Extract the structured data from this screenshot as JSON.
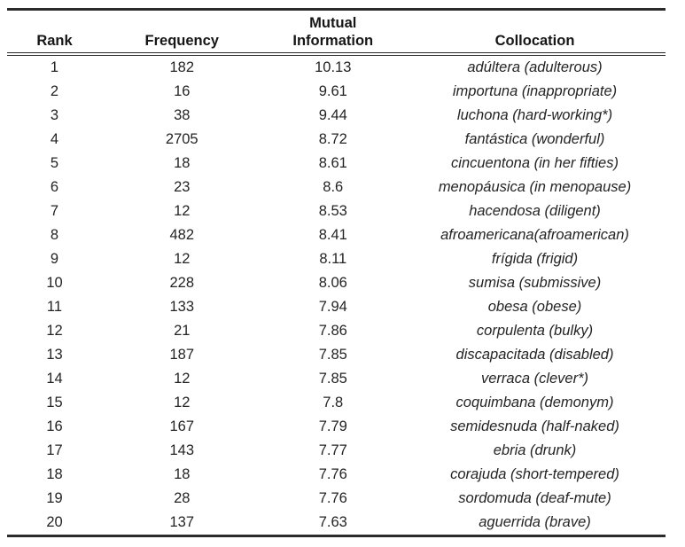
{
  "colors": {
    "background": "#ffffff",
    "text": "#242424",
    "rule": "#2b2b2b"
  },
  "table": {
    "headers": [
      "Rank",
      "Frequency",
      "Mutual Information",
      "Collocation"
    ],
    "rows": [
      [
        "1",
        "182",
        "10.13",
        "adúltera (adulterous)"
      ],
      [
        "2",
        "16",
        "9.61",
        "importuna (inappropriate)"
      ],
      [
        "3",
        "38",
        "9.44",
        "luchona (hard-working*)"
      ],
      [
        "4",
        "2705",
        "8.72",
        "fantástica (wonderful)"
      ],
      [
        "5",
        "18",
        "8.61",
        "cincuentona (in her fifties)"
      ],
      [
        "6",
        "23",
        "8.6",
        "menopáusica (in menopause)"
      ],
      [
        "7",
        "12",
        "8.53",
        "hacendosa (diligent)"
      ],
      [
        "8",
        "482",
        "8.41",
        "afroamericana(afroamerican)"
      ],
      [
        "9",
        "12",
        "8.11",
        "frígida (frigid)"
      ],
      [
        "10",
        "228",
        "8.06",
        "sumisa (submissive)"
      ],
      [
        "11",
        "133",
        "7.94",
        "obesa (obese)"
      ],
      [
        "12",
        "21",
        "7.86",
        "corpulenta (bulky)"
      ],
      [
        "13",
        "187",
        "7.85",
        "discapacitada (disabled)"
      ],
      [
        "14",
        "12",
        "7.85",
        "verraca (clever*)"
      ],
      [
        "15",
        "12",
        "7.8",
        "coquimbana (demonym)"
      ],
      [
        "16",
        "167",
        "7.79",
        "semidesnuda (half-naked)"
      ],
      [
        "17",
        "143",
        "7.77",
        "ebria (drunk)"
      ],
      [
        "18",
        "18",
        "7.76",
        "corajuda (short-tempered)"
      ],
      [
        "19",
        "28",
        "7.76",
        "sordomuda (deaf-mute)"
      ],
      [
        "20",
        "137",
        "7.63",
        "aguerrida (brave)"
      ]
    ]
  }
}
